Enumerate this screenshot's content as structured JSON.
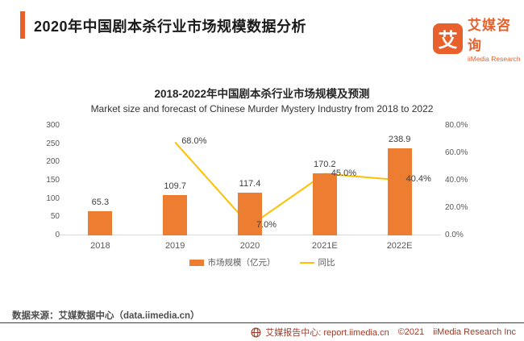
{
  "header": {
    "title": "2020年中国剧本杀行业市场规模数据分析",
    "logo": {
      "icon_char": "艾",
      "name_cn": "艾媒咨询",
      "name_en": "iiMedia Research"
    }
  },
  "chart_data": {
    "type": "bar+line",
    "title": "2018-2022年中国剧本杀行业市场规模及预测",
    "subtitle": "Market size and forecast of Chinese Murder Mystery Industry from 2018 to 2022",
    "categories": [
      "2018",
      "2019",
      "2020",
      "2021E",
      "2022E"
    ],
    "series": [
      {
        "name": "市场规模（亿元）",
        "type": "bar",
        "color": "#ED7D31",
        "values": [
          65.3,
          109.7,
          117.4,
          170.2,
          238.9
        ],
        "labels": [
          "65.3",
          "109.7",
          "117.4",
          "170.2",
          "238.9"
        ]
      },
      {
        "name": "同比",
        "type": "line",
        "color": "#FFC000",
        "values": [
          null,
          68.0,
          7.0,
          45.0,
          40.4
        ],
        "labels": [
          "",
          "68.0%",
          "7.0%",
          "45.0%",
          "40.4%"
        ]
      }
    ],
    "left_axis": {
      "min": 0,
      "max": 300,
      "ticks": [
        "300",
        "250",
        "200",
        "150",
        "100",
        "50",
        "0"
      ]
    },
    "right_axis": {
      "min": 0,
      "max": 80,
      "ticks": [
        "80.0%",
        "60.0%",
        "40.0%",
        "20.0%",
        "0.0%"
      ]
    },
    "legend_position": "bottom",
    "grid": false
  },
  "footer": {
    "source": "数据来源：艾媒数据中心（data.iimedia.cn）",
    "report_center": "艾媒报告中心: report.iimedia.cn",
    "copyright": "©2021",
    "company": "iiMedia Research Inc"
  }
}
